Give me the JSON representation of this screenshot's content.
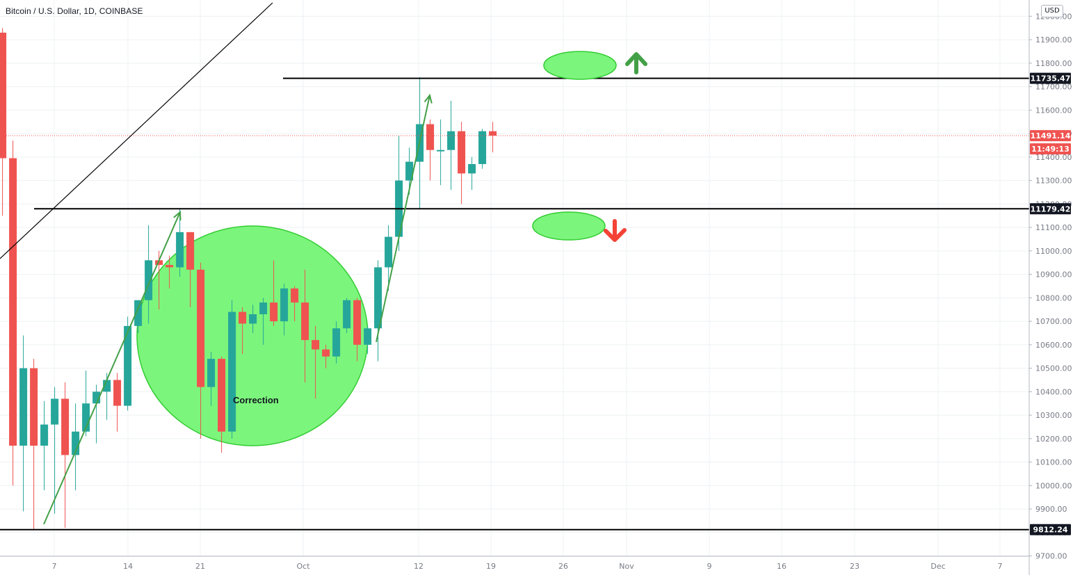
{
  "header": {
    "title": "Bitcoin / U.S. Dollar, 1D, COINBASE"
  },
  "currency_badge": "USD",
  "colors": {
    "up": "#26a69a",
    "down": "#ef5350",
    "grid": "#eef0f3",
    "axis_text": "#787b86",
    "label_black_bg": "#131722",
    "label_red_bg": "#ef5350",
    "annotation_green": "#7cf57c",
    "annotation_stroke": "#33cc33",
    "arrow_green": "#43a047",
    "arrow_red": "#f44336"
  },
  "chart_data": {
    "type": "candlestick",
    "title": "Bitcoin / U.S. Dollar, 1D, COINBASE",
    "ylim": [
      9700,
      12000
    ],
    "y_ticks": [
      "9700.00",
      "9800.00",
      "9900.00",
      "10000.00",
      "10100.00",
      "10200.00",
      "10300.00",
      "10400.00",
      "10500.00",
      "10600.00",
      "10700.00",
      "10800.00",
      "10900.00",
      "11000.00",
      "11100.00",
      "11200.00",
      "11300.00",
      "11400.00",
      "11500.00",
      "11600.00",
      "11700.00",
      "11800.00",
      "11900.00",
      "12000.00"
    ],
    "x_ticks": [
      "7",
      "14",
      "21",
      "Oct",
      "12",
      "19",
      "26",
      "Nov",
      "9",
      "16",
      "23",
      "Dec",
      "7"
    ],
    "candles": [
      {
        "d": "Sep 2",
        "o": 11930,
        "h": 11950,
        "l": 11150,
        "c": 11395
      },
      {
        "d": "Sep 3",
        "o": 11395,
        "h": 11470,
        "l": 10000,
        "c": 10170
      },
      {
        "d": "Sep 4",
        "o": 10170,
        "h": 10640,
        "l": 9890,
        "c": 10500
      },
      {
        "d": "Sep 5",
        "o": 10500,
        "h": 10540,
        "l": 9810,
        "c": 10170
      },
      {
        "d": "Sep 6",
        "o": 10170,
        "h": 10360,
        "l": 9980,
        "c": 10260
      },
      {
        "d": "Sep 7",
        "o": 10260,
        "h": 10420,
        "l": 9880,
        "c": 10370
      },
      {
        "d": "Sep 8",
        "o": 10370,
        "h": 10440,
        "l": 9820,
        "c": 10130
      },
      {
        "d": "Sep 9",
        "o": 10130,
        "h": 10350,
        "l": 9980,
        "c": 10230
      },
      {
        "d": "Sep 10",
        "o": 10230,
        "h": 10490,
        "l": 10210,
        "c": 10350
      },
      {
        "d": "Sep 11",
        "o": 10350,
        "h": 10430,
        "l": 10180,
        "c": 10400
      },
      {
        "d": "Sep 12",
        "o": 10400,
        "h": 10480,
        "l": 10280,
        "c": 10450
      },
      {
        "d": "Sep 13",
        "o": 10450,
        "h": 10480,
        "l": 10230,
        "c": 10340
      },
      {
        "d": "Sep 14",
        "o": 10340,
        "h": 10720,
        "l": 10320,
        "c": 10680
      },
      {
        "d": "Sep 15",
        "o": 10680,
        "h": 10790,
        "l": 10650,
        "c": 10790
      },
      {
        "d": "Sep 16",
        "o": 10790,
        "h": 11110,
        "l": 10690,
        "c": 10960
      },
      {
        "d": "Sep 17",
        "o": 10960,
        "h": 11000,
        "l": 10750,
        "c": 10940
      },
      {
        "d": "Sep 18",
        "o": 10940,
        "h": 10980,
        "l": 10840,
        "c": 10930
      },
      {
        "d": "Sep 19",
        "o": 10930,
        "h": 11180,
        "l": 10890,
        "c": 11080
      },
      {
        "d": "Sep 20",
        "o": 11080,
        "h": 11080,
        "l": 10760,
        "c": 10920
      },
      {
        "d": "Sep 21",
        "o": 10920,
        "h": 10950,
        "l": 10200,
        "c": 10420
      },
      {
        "d": "Sep 22",
        "o": 10420,
        "h": 10570,
        "l": 10340,
        "c": 10540
      },
      {
        "d": "Sep 23",
        "o": 10540,
        "h": 10550,
        "l": 10140,
        "c": 10230
      },
      {
        "d": "Sep 24",
        "o": 10230,
        "h": 10790,
        "l": 10200,
        "c": 10740
      },
      {
        "d": "Sep 25",
        "o": 10740,
        "h": 10760,
        "l": 10560,
        "c": 10690
      },
      {
        "d": "Sep 26",
        "o": 10690,
        "h": 10770,
        "l": 10650,
        "c": 10730
      },
      {
        "d": "Sep 27",
        "o": 10730,
        "h": 10800,
        "l": 10600,
        "c": 10780
      },
      {
        "d": "Sep 28",
        "o": 10780,
        "h": 10960,
        "l": 10680,
        "c": 10700
      },
      {
        "d": "Sep 29",
        "o": 10700,
        "h": 10860,
        "l": 10640,
        "c": 10840
      },
      {
        "d": "Sep 30",
        "o": 10840,
        "h": 10850,
        "l": 10700,
        "c": 10780
      },
      {
        "d": "Oct 1",
        "o": 10780,
        "h": 10920,
        "l": 10440,
        "c": 10620
      },
      {
        "d": "Oct 2",
        "o": 10620,
        "h": 10680,
        "l": 10370,
        "c": 10580
      },
      {
        "d": "Oct 3",
        "o": 10580,
        "h": 10600,
        "l": 10500,
        "c": 10550
      },
      {
        "d": "Oct 4",
        "o": 10550,
        "h": 10700,
        "l": 10520,
        "c": 10670
      },
      {
        "d": "Oct 5",
        "o": 10670,
        "h": 10800,
        "l": 10650,
        "c": 10790
      },
      {
        "d": "Oct 6",
        "o": 10790,
        "h": 10800,
        "l": 10530,
        "c": 10600
      },
      {
        "d": "Oct 7",
        "o": 10600,
        "h": 10680,
        "l": 10560,
        "c": 10670
      },
      {
        "d": "Oct 8",
        "o": 10670,
        "h": 10960,
        "l": 10530,
        "c": 10930
      },
      {
        "d": "Oct 9",
        "o": 10930,
        "h": 11110,
        "l": 10830,
        "c": 11060
      },
      {
        "d": "Oct 10",
        "o": 11060,
        "h": 11490,
        "l": 11000,
        "c": 11300
      },
      {
        "d": "Oct 11",
        "o": 11300,
        "h": 11440,
        "l": 11240,
        "c": 11380
      },
      {
        "d": "Oct 12",
        "o": 11380,
        "h": 11740,
        "l": 11180,
        "c": 11540
      },
      {
        "d": "Oct 13",
        "o": 11540,
        "h": 11560,
        "l": 11300,
        "c": 11430
      },
      {
        "d": "Oct 14",
        "o": 11430,
        "h": 11560,
        "l": 11280,
        "c": 11430
      },
      {
        "d": "Oct 15",
        "o": 11430,
        "h": 11640,
        "l": 11260,
        "c": 11510
      },
      {
        "d": "Oct 16",
        "o": 11510,
        "h": 11550,
        "l": 11200,
        "c": 11330
      },
      {
        "d": "Oct 17",
        "o": 11330,
        "h": 11400,
        "l": 11260,
        "c": 11370
      },
      {
        "d": "Oct 18",
        "o": 11370,
        "h": 11520,
        "l": 11350,
        "c": 11510
      },
      {
        "d": "Oct 19",
        "o": 11510,
        "h": 11550,
        "l": 11420,
        "c": 11491
      }
    ],
    "horizontal_levels": [
      {
        "value": 11735.47,
        "label": "11735.47"
      },
      {
        "value": 11179.42,
        "label": "11179.42"
      },
      {
        "value": 9812.24,
        "label": "9812.24"
      }
    ],
    "last_price": {
      "value": 11491.14,
      "label": "11491.14",
      "countdown": "11:49:13"
    },
    "annotations": {
      "correction_label": "Correction"
    }
  }
}
